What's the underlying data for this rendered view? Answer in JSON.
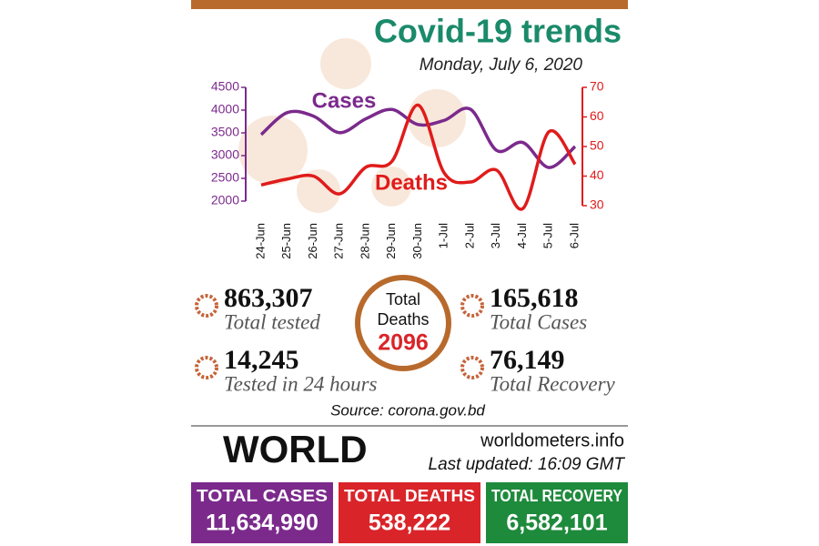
{
  "chart_data": {
    "type": "line",
    "title": "Covid-19 trends",
    "subtitle": "Monday, July 6, 2020",
    "categories": [
      "24-Jun",
      "25-Jun",
      "26-Jun",
      "27-Jun",
      "28-Jun",
      "29-Jun",
      "30-Jun",
      "1-Jul",
      "2-Jul",
      "3-Jul",
      "4-Jul",
      "5-Jul",
      "6-Jul"
    ],
    "series": [
      {
        "name": "Cases",
        "color": "#7b2a8c",
        "values": [
          3462,
          3946,
          3868,
          3504,
          3809,
          4014,
          3682,
          3775,
          4019,
          3114,
          3288,
          2738,
          3201
        ]
      },
      {
        "name": "Deaths",
        "color": "#e01b1b",
        "axis": "y2",
        "values": [
          37,
          39,
          40,
          34,
          43,
          45,
          64,
          41,
          38,
          42,
          29,
          55,
          44
        ]
      }
    ],
    "ylim": [
      2000,
      4500
    ],
    "yticks": [
      2000,
      2500,
      3000,
      3500,
      4000,
      4500
    ],
    "y2lim": [
      30,
      70
    ],
    "y2ticks": [
      30,
      40,
      50,
      60,
      70
    ]
  },
  "local": {
    "stats": [
      {
        "value": "863,307",
        "label": "Total tested"
      },
      {
        "value": "14,245",
        "label": "Tested in 24 hours"
      },
      {
        "value": "165,618",
        "label": "Total Cases"
      },
      {
        "value": "76,149",
        "label": "Total Recovery"
      }
    ],
    "total_deaths": {
      "label": "Total Deaths",
      "value": "2096"
    },
    "source": "Source: corona.gov.bd"
  },
  "world": {
    "title": "WORLD",
    "site": "worldometers.info",
    "updated": "Last updated: 16:09 GMT",
    "boxes": [
      {
        "label": "TOTAL CASES",
        "value": "11,634,990",
        "color": "#7b2a8c"
      },
      {
        "label": "TOTAL DEATHS",
        "value": "538,222",
        "color": "#d9252a"
      },
      {
        "label": "TOTAL RECOVERY",
        "value": "6,582,101",
        "color": "#1e8a3c"
      }
    ]
  }
}
